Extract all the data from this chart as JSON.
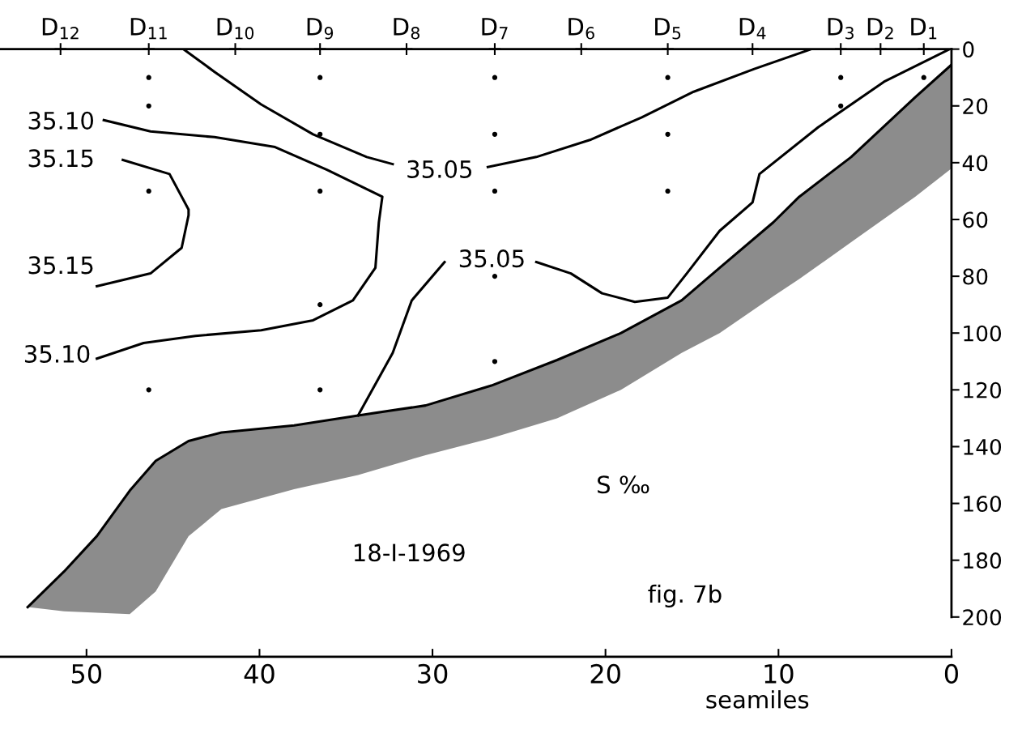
{
  "chart_data": {
    "type": "line",
    "xlabel": "seamiles",
    "xlim": [
      55,
      0
    ],
    "xticks": [
      50,
      40,
      30,
      20,
      10,
      0
    ],
    "ylim": [
      214,
      0
    ],
    "yticks": [
      0,
      20,
      40,
      60,
      80,
      100,
      120,
      140,
      160,
      180,
      200
    ],
    "grid": false,
    "legend": false,
    "series": [
      {
        "color": "#000000",
        "x": [
          44.4,
          42.6,
          39.9,
          36.9,
          33.8,
          32.3,
          29.6,
          26.8,
          24.0,
          20.9,
          17.9,
          14.9,
          11.4,
          8.1
        ],
        "values": [
          0,
          8,
          19.5,
          30,
          38,
          40.5,
          null,
          41.5,
          38,
          32,
          24,
          15,
          7,
          0
        ]
      },
      {
        "color": "#000000",
        "x": [
          49.0,
          46.3,
          42.6,
          39.1,
          36.1,
          32.9,
          33.1,
          33.3,
          34.6,
          36.9,
          39.9,
          43.7,
          46.7,
          49.4
        ],
        "values": [
          25,
          29,
          31,
          34.5,
          42.5,
          52,
          61,
          77,
          88.5,
          95.5,
          99,
          101,
          103.5,
          109
        ]
      },
      {
        "color": "#000000",
        "x": [
          47.9,
          45.2,
          44.1,
          44.1,
          44.5,
          46.3,
          49.4
        ],
        "values": [
          39,
          44,
          56.5,
          58.5,
          70,
          79,
          83.5
        ]
      },
      {
        "color": "#000000",
        "x": [
          34.3,
          32.3,
          31.2,
          29.3,
          26.6,
          24.0,
          22.0,
          20.2,
          18.3,
          16.4,
          15.3,
          13.4,
          11.5,
          11.1,
          7.7,
          3.9,
          0.1
        ],
        "values": [
          129,
          107,
          88.5,
          75,
          null,
          75,
          79,
          86,
          89,
          87.5,
          79,
          64,
          54,
          44,
          27.5,
          11.5,
          0
        ]
      },
      {
        "color": "#000000",
        "x": [
          53.4,
          51.3,
          49.4,
          47.5,
          46.0,
          44.1,
          42.2,
          38.0,
          34.3,
          30.4,
          26.6,
          22.8,
          19.1,
          15.6,
          13.4,
          10.3,
          8.8,
          5.8,
          2.1,
          0
        ],
        "values": [
          196.5,
          184,
          171.5,
          155.5,
          145,
          138,
          135,
          132.5,
          129,
          125.5,
          118.5,
          109.5,
          100,
          88.5,
          77,
          61,
          52,
          38,
          17,
          5.5
        ],
        "lower": [
          196.5,
          184,
          171.5,
          155.5,
          145,
          138,
          135,
          132.5,
          129,
          125.5,
          118.5,
          109.5,
          100,
          88.5,
          77,
          61,
          52,
          38,
          17,
          5.5
        ],
        "upper": [
          196.5,
          198,
          198.5,
          199,
          191,
          171.5,
          162,
          155,
          150,
          143,
          137,
          130,
          120,
          107,
          100,
          87,
          81,
          68,
          52,
          42
        ]
      },
      {
        "type": "scatter",
        "color": "#000000",
        "marker": "circle",
        "x": [
          46.4,
          46.4,
          46.4,
          46.4,
          36.5,
          36.5,
          36.5,
          36.5,
          36.5,
          26.4,
          26.4,
          26.4,
          26.4,
          26.4,
          16.4,
          16.4,
          16.4,
          6.4,
          6.4,
          1.6
        ],
        "values": [
          10,
          20,
          50,
          120,
          10,
          30,
          50,
          90,
          120,
          10,
          30,
          50,
          80,
          110,
          10,
          30,
          50,
          10,
          20,
          10
        ]
      },
      {
        "type": "scatter",
        "color": "#000000",
        "marker": "cross",
        "x": [
          51.5,
          46.4,
          41.4,
          36.5,
          31.5,
          26.4,
          21.4,
          16.4,
          11.5,
          6.4,
          4.1,
          1.6
        ],
        "values": [
          0,
          0,
          0,
          0,
          0,
          0,
          0,
          0,
          0,
          0,
          0,
          0
        ]
      }
    ],
    "annotations": [
      "35.05",
      "35.05",
      {
        "text": "D$_{12}$",
        "x": 51.5,
        "y": 0
      },
      {
        "text": "D$_{11}$",
        "x": 46.4,
        "y": 0
      },
      {
        "text": "D$_{10}$",
        "x": 41.4,
        "y": 0
      },
      {
        "text": "D$_{9}$",
        "x": 36.5,
        "y": 0
      },
      {
        "text": "D$_{8}$",
        "x": 31.5,
        "y": 0
      },
      {
        "text": "D$_{7}$",
        "x": 26.4,
        "y": 0
      },
      {
        "text": "D$_{6}$",
        "x": 21.4,
        "y": 0
      },
      {
        "text": "D$_{5}$",
        "x": 16.4,
        "y": 0
      },
      {
        "text": "D$_{4}$",
        "x": 11.5,
        "y": 0
      },
      {
        "text": "D$_{3}$",
        "x": 6.4,
        "y": 0
      },
      {
        "text": "D$_{2}$",
        "x": 4.1,
        "y": 0
      },
      {
        "text": "D$_{1}$",
        "x": 1.6,
        "y": 0
      },
      "35.10",
      "35.15",
      "35.15",
      "35.10",
      "S ‰",
      "18-I-1969",
      "fig. 7b"
    ]
  }
}
